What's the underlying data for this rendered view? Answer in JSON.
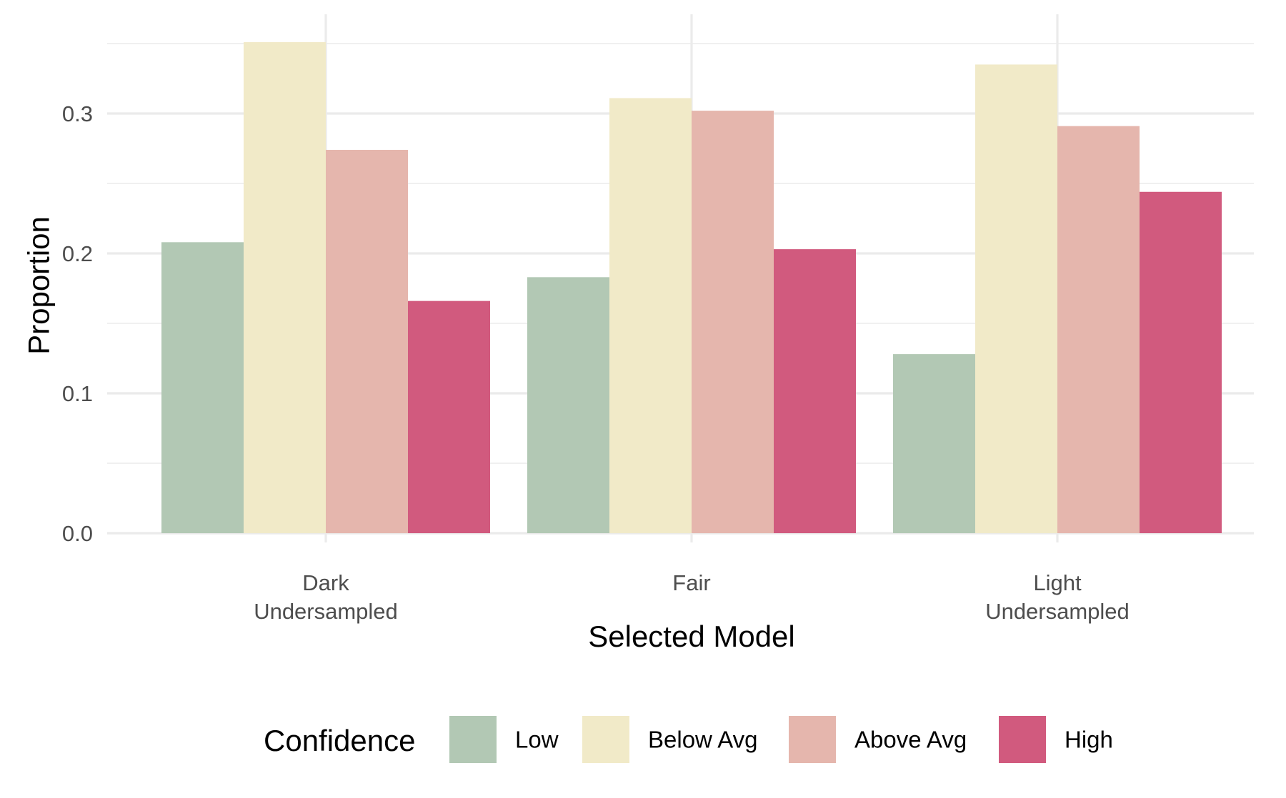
{
  "chart_data": {
    "type": "bar",
    "title": "",
    "xlabel": "Selected Model",
    "ylabel": "Proportion",
    "categories": [
      [
        "Dark",
        "Undersampled"
      ],
      [
        "Fair"
      ],
      [
        "Light",
        "Undersampled"
      ]
    ],
    "series": [
      {
        "name": "Low",
        "color": "#b2c8b4",
        "values": [
          0.208,
          0.183,
          0.128
        ]
      },
      {
        "name": "Below Avg",
        "color": "#f1eac8",
        "values": [
          0.351,
          0.311,
          0.335
        ]
      },
      {
        "name": "Above Avg",
        "color": "#e5b6ad",
        "values": [
          0.274,
          0.302,
          0.291
        ]
      },
      {
        "name": "High",
        "color": "#d15a7e",
        "values": [
          0.166,
          0.203,
          0.244
        ]
      }
    ],
    "ylim": [
      0,
      0.35
    ],
    "yticks": [
      0.0,
      0.1,
      0.2,
      0.3
    ],
    "ytick_labels": [
      "0.0",
      "0.1",
      "0.2",
      "0.3"
    ],
    "grid": true,
    "legend": {
      "title": "Confidence",
      "position": "bottom"
    }
  }
}
